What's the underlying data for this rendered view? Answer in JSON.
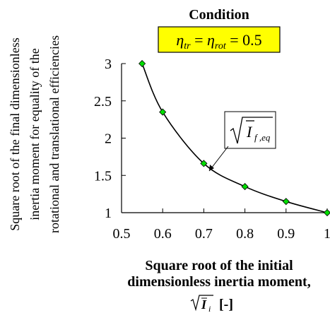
{
  "chart_data": {
    "type": "line",
    "title": "Condition",
    "condition_label": {
      "lhs": "η",
      "lhs_sub": "tr",
      "mid": "η",
      "mid_sub": "rot",
      "value": "0.5",
      "box_color": "#ffff00"
    },
    "ylabel_lines": [
      "Square root of the final dimensionless",
      "inertia moment for equality of the",
      "rotational and translational efficiencies"
    ],
    "xlabel_lines": [
      "Square root of the initial",
      "dimensionless inertia moment,"
    ],
    "xlabel_unit": "[-]",
    "xlabel_symbol": "I",
    "xlabel_symbol_sub": "i",
    "annotation": {
      "symbol": "I",
      "subscript": "f ,eq"
    },
    "xlim": [
      0.5,
      1.0
    ],
    "ylim": [
      1.0,
      3.0
    ],
    "xticks": [
      "0.5",
      "0.6",
      "0.7",
      "0.8",
      "0.9",
      "1"
    ],
    "yticks": [
      "1",
      "1.5",
      "2",
      "2.5",
      "3"
    ],
    "xtick_values": [
      0.5,
      0.6,
      0.7,
      0.8,
      0.9,
      1.0
    ],
    "ytick_values": [
      1.0,
      1.5,
      2.0,
      2.5,
      3.0
    ],
    "grid": false,
    "series": [
      {
        "x": [
          0.55,
          0.6,
          0.7,
          0.8,
          0.9,
          1.0
        ],
        "y": [
          3.0,
          2.35,
          1.66,
          1.35,
          1.15,
          1.0
        ],
        "marker_color": "#00dd00",
        "line_color": "#000000"
      }
    ]
  }
}
